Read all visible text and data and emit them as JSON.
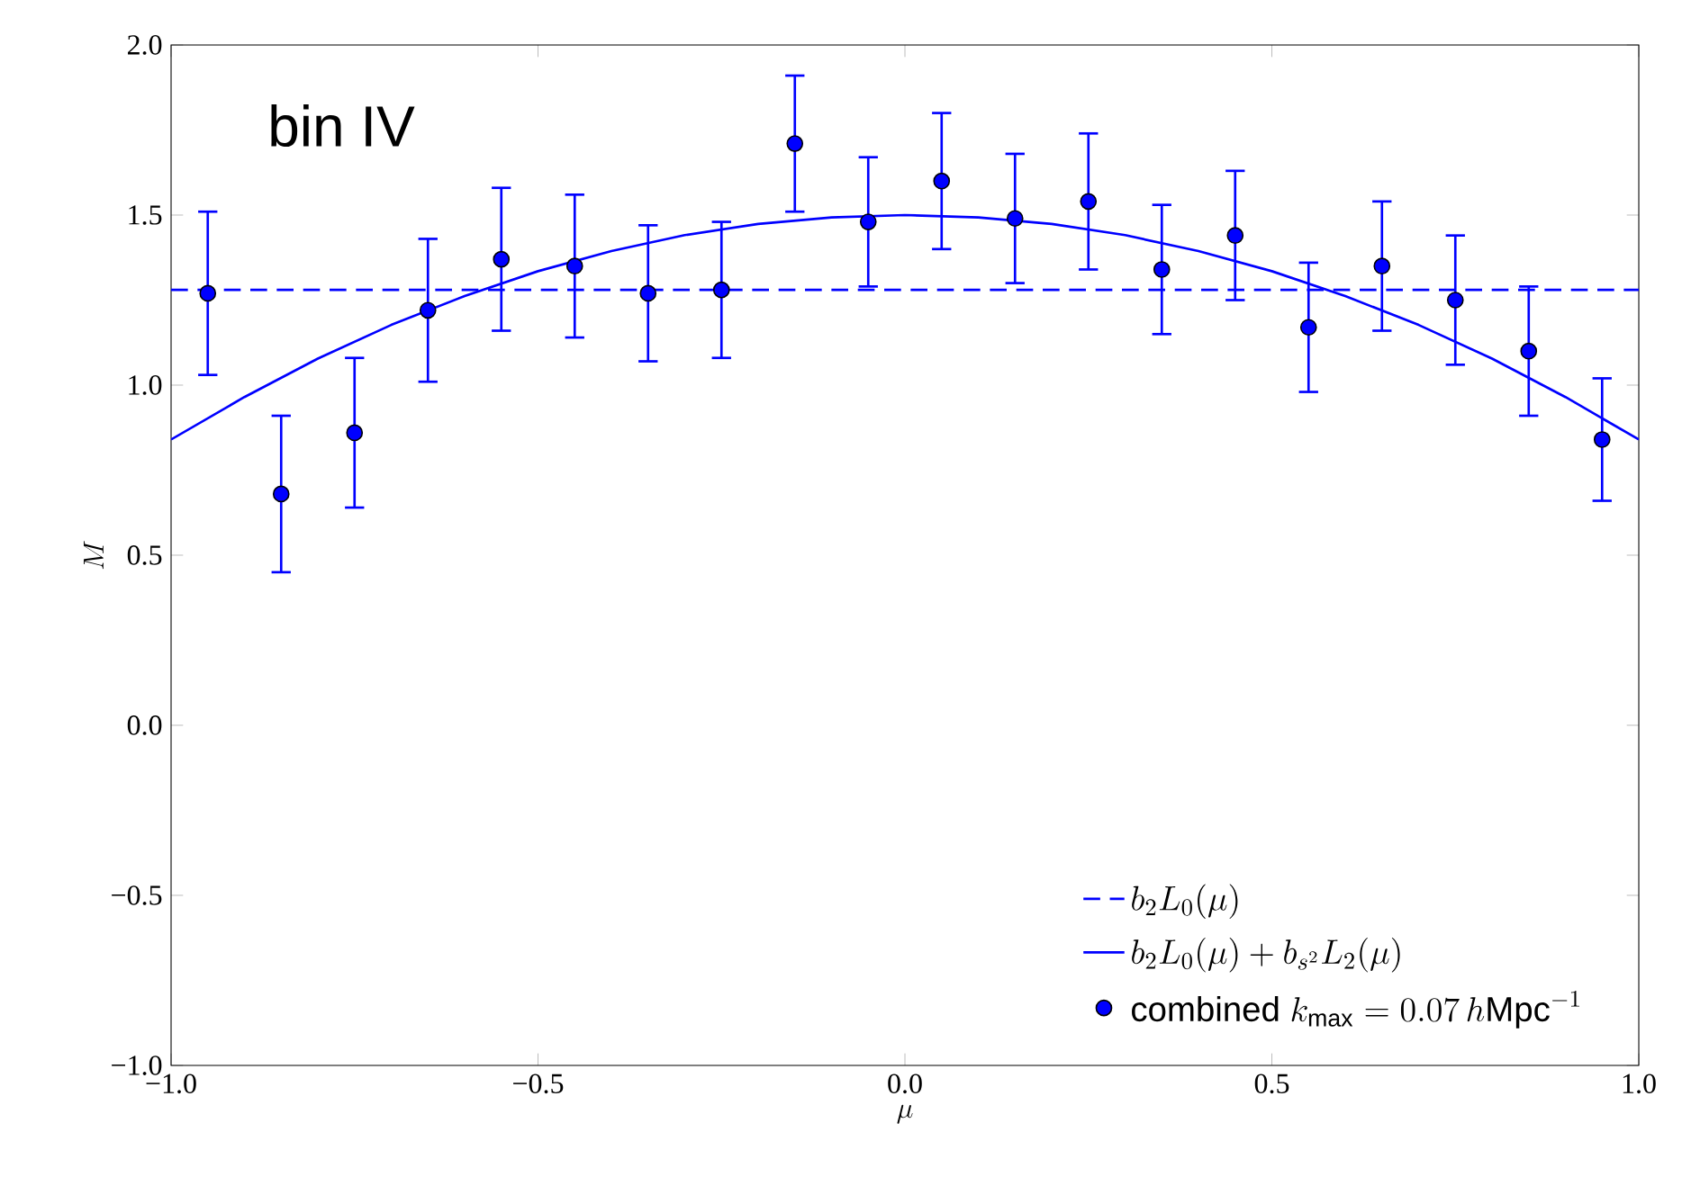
{
  "chart_data": {
    "type": "scatter",
    "xlabel": "\\mu",
    "ylabel": "M",
    "annotations": [
      "bin IV"
    ],
    "xlim": [
      -1.0,
      1.0
    ],
    "ylim": [
      -1.0,
      2.0
    ],
    "xticks": [
      {
        "value": -1.0,
        "label": "−1.0"
      },
      {
        "value": -0.5,
        "label": "−0.5"
      },
      {
        "value": 0.0,
        "label": "0.0"
      },
      {
        "value": 0.5,
        "label": "0.5"
      },
      {
        "value": 1.0,
        "label": "1.0"
      }
    ],
    "yticks": [
      {
        "value": -1.0,
        "label": "−1.0"
      },
      {
        "value": -0.5,
        "label": "−0.5"
      },
      {
        "value": 0.0,
        "label": "0.0"
      },
      {
        "value": 0.5,
        "label": "0.5"
      },
      {
        "value": 1.0,
        "label": "1.0"
      },
      {
        "value": 1.5,
        "label": "1.5"
      },
      {
        "value": 2.0,
        "label": "2.0"
      }
    ],
    "grid": false,
    "legend": "bottom right",
    "series": [
      {
        "type": "line",
        "name": "b_2L_0(\\mu)",
        "color": "#0000ff",
        "line_style": "dashed",
        "marker": "none",
        "x": [
          -1.0,
          1.0
        ],
        "values": [
          1.28,
          1.28
        ]
      },
      {
        "type": "line",
        "name": "b_2L_0(\\mu)+b_{s^2}L_2(\\mu)",
        "color": "#0000ff",
        "line_style": "solid",
        "marker": "none",
        "x": [
          -1.0,
          -0.9,
          -0.8,
          -0.7,
          -0.6,
          -0.5,
          -0.4,
          -0.3,
          -0.2,
          -0.1,
          0.0,
          0.1,
          0.2,
          0.3,
          0.4,
          0.5,
          0.6,
          0.7,
          0.8,
          0.9,
          1.0
        ],
        "values": [
          0.84,
          0.965,
          1.078,
          1.177,
          1.262,
          1.335,
          1.394,
          1.441,
          1.474,
          1.493,
          1.5,
          1.493,
          1.474,
          1.441,
          1.394,
          1.335,
          1.262,
          1.177,
          1.078,
          0.965,
          0.84
        ]
      },
      {
        "name": "\\text{combined }k_{\\text{max}}=0.07\\,h\\text{Mpc}^{-1}",
        "color": "#0000ff",
        "marker": "circle",
        "x": [
          -0.95,
          -0.85,
          -0.75,
          -0.65,
          -0.55,
          -0.45,
          -0.35,
          -0.25,
          -0.15,
          -0.05,
          0.05,
          0.15,
          0.25,
          0.35,
          0.45,
          0.55,
          0.65,
          0.75,
          0.85,
          0.95
        ],
        "values": [
          1.27,
          0.68,
          0.86,
          1.22,
          1.37,
          1.35,
          1.27,
          1.28,
          1.71,
          1.48,
          1.6,
          1.49,
          1.54,
          1.34,
          1.44,
          1.17,
          1.35,
          1.25,
          1.1,
          0.84
        ],
        "errors": [
          0.24,
          0.23,
          0.22,
          0.21,
          0.21,
          0.21,
          0.2,
          0.2,
          0.2,
          0.19,
          0.2,
          0.19,
          0.2,
          0.19,
          0.19,
          0.19,
          0.19,
          0.19,
          0.19,
          0.18
        ]
      }
    ]
  }
}
